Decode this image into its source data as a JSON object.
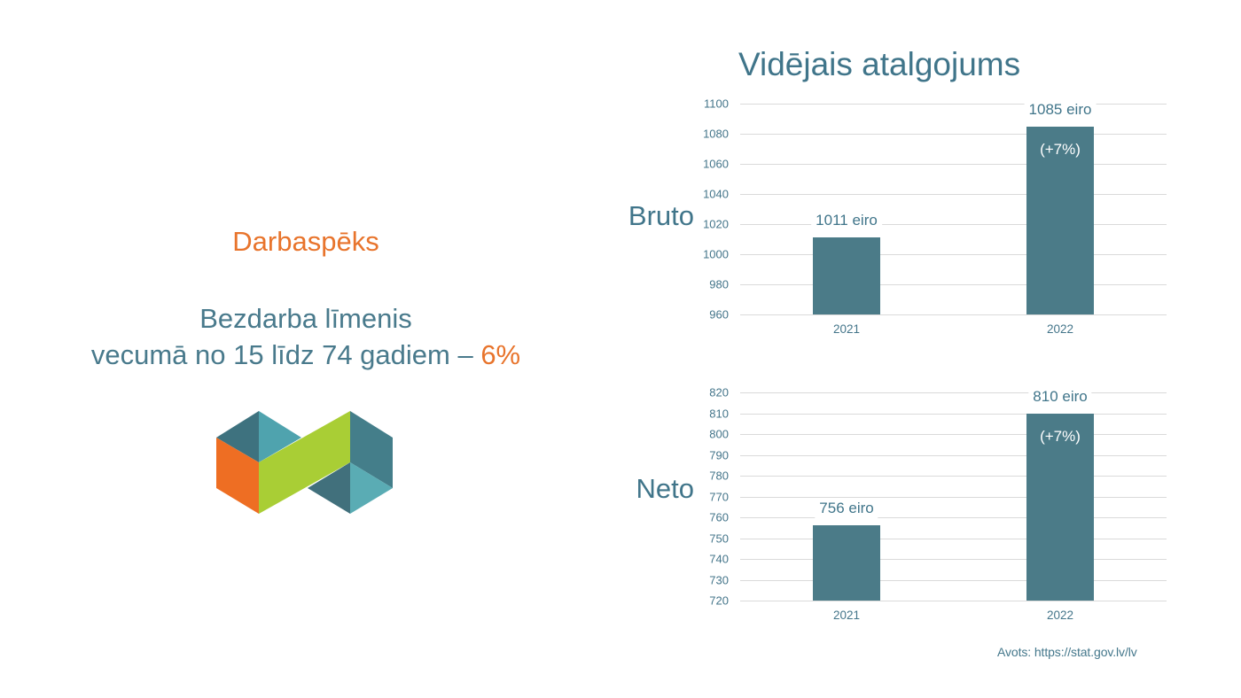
{
  "title": "Vidējais atalgojums",
  "left_panel": {
    "heading": "Darbaspēks",
    "line1": "Bezdarba līmenis",
    "line2_prefix": "vecumā no 15 līdz 74 gadiem – ",
    "line2_value": "6%",
    "logo_colors": {
      "top_left": "#3E727F",
      "top_right": "#4FA3AE",
      "left_face": "#EE6E23",
      "band": "#A9CE35",
      "right_face": "#447E8A",
      "bottom_left": "#41707C",
      "bottom_right": "#5AACB4"
    }
  },
  "source": "Avots: https://stat.gov.lv/lv",
  "colors": {
    "teal_text": "#40758A",
    "tick_text": "#44758A",
    "orange_accent": "#E8742C",
    "bar": "#4B7B88",
    "grid": "#DADADA"
  },
  "chart_data": [
    {
      "type": "bar",
      "group_label": "Bruto",
      "categories": [
        "2021",
        "2022"
      ],
      "values": [
        1011,
        1085
      ],
      "bar_labels": [
        "1011 eiro",
        "1085 eiro"
      ],
      "bar_annotations": [
        "",
        "(+7%)"
      ],
      "ylim": [
        960,
        1100
      ],
      "yticks": [
        960,
        980,
        1000,
        1020,
        1040,
        1060,
        1080,
        1100
      ],
      "ylabel": "",
      "xlabel": "",
      "grid": true,
      "legend": "none",
      "bar_color": "#4B7B88"
    },
    {
      "type": "bar",
      "group_label": "Neto",
      "categories": [
        "2021",
        "2022"
      ],
      "values": [
        756,
        810
      ],
      "bar_labels": [
        "756 eiro",
        "810 eiro"
      ],
      "bar_annotations": [
        "",
        "(+7%)"
      ],
      "ylim": [
        720,
        820
      ],
      "yticks": [
        720,
        730,
        740,
        750,
        760,
        770,
        780,
        790,
        800,
        810,
        820
      ],
      "ylabel": "",
      "xlabel": "",
      "grid": true,
      "legend": "none",
      "bar_color": "#4B7B88"
    }
  ]
}
